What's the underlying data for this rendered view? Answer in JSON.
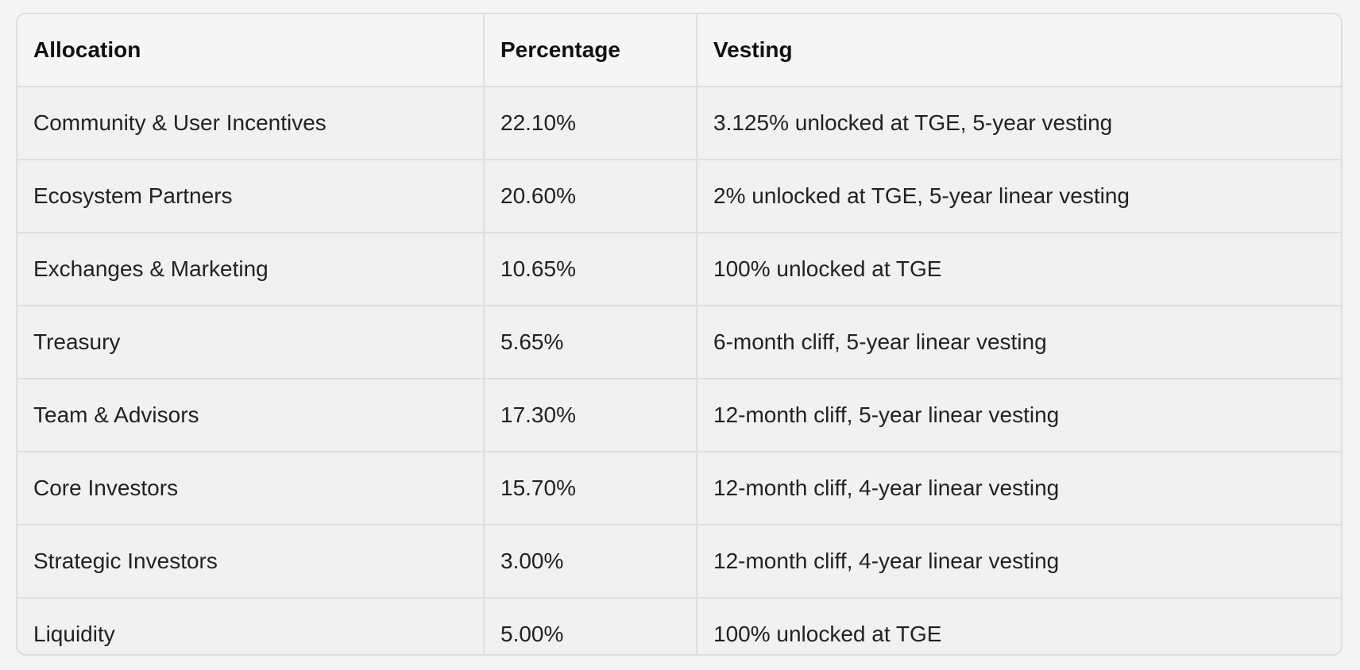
{
  "table": {
    "headers": [
      "Allocation",
      "Percentage",
      "Vesting"
    ],
    "rows": [
      [
        "Community & User Incentives",
        "22.10%",
        "3.125% unlocked at TGE, 5-year vesting"
      ],
      [
        "Ecosystem Partners",
        "20.60%",
        "2% unlocked at TGE, 5-year linear vesting"
      ],
      [
        "Exchanges & Marketing",
        "10.65%",
        "100% unlocked at TGE"
      ],
      [
        "Treasury",
        "5.65%",
        "6-month cliff, 5-year linear vesting"
      ],
      [
        "Team & Advisors",
        "17.30%",
        "12-month cliff, 5-year linear vesting"
      ],
      [
        "Core Investors",
        "15.70%",
        "12-month cliff, 4-year linear vesting"
      ],
      [
        "Strategic Investors",
        "3.00%",
        "12-month cliff, 4-year linear vesting"
      ],
      [
        "Liquidity",
        "5.00%",
        "100% unlocked at TGE"
      ]
    ]
  }
}
